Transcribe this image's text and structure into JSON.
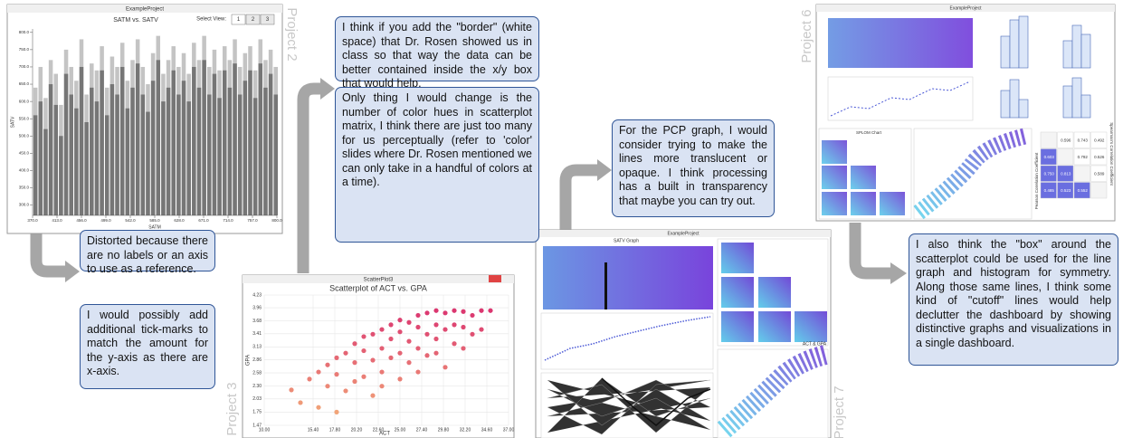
{
  "project_labels": [
    "Project 2",
    "Project 3",
    "Project 6",
    "Project 7"
  ],
  "comments": [
    "Distorted because there are no labels or an axis to use as a reference.",
    "I would possibly add additional tick-marks to match the amount for the y-axis as there are x-axis.",
    "I think if you add the \"border\" (white space) that Dr. Rosen showed us in class so that way the data can be better contained inside the x/y box that would help.",
    "Only thing I would change is the number of color hues in scatterplot matrix, I think there are just too many for us perceptually (refer to 'color' slides where Dr. Rosen mentioned we can only take in a handful of colors at a time).",
    "For the PCP graph, I would consider trying to make the lines more translucent or opaque. I think processing has a built in transparency that maybe you can try out.",
    "I also think the \"box\" around the scatterplot could be used for the line graph and histogram for symmetry. Along those same lines, I think some kind of \"cutoff\" lines would help declutter the dashboard by showing distinctive graphs and visualizations in a single dashboard."
  ],
  "project2": {
    "window_title": "ExampleProject",
    "select_view": "Select View:",
    "buttons": [
      "1",
      "2",
      "3"
    ],
    "chart_data": {
      "type": "bar",
      "title": "SATM vs. SATV",
      "x_label": "SATM",
      "y_label": "SATV",
      "x": [
        375,
        384,
        393,
        402,
        411,
        420,
        429,
        438,
        447,
        456,
        465,
        474,
        483,
        492,
        501,
        510,
        519,
        528,
        537,
        546,
        555,
        564,
        573,
        582,
        591,
        600,
        609,
        618,
        627,
        636,
        645,
        654,
        663,
        672,
        681,
        690,
        699,
        708,
        717,
        726,
        735,
        744,
        753,
        762,
        771,
        780,
        789,
        798
      ],
      "series": [
        {
          "color": "#c4c4c4",
          "values": [
            640,
            700,
            610,
            720,
            680,
            590,
            750,
            700,
            660,
            780,
            620,
            710,
            690,
            760,
            640,
            730,
            700,
            770,
            660,
            720,
            780,
            700,
            650,
            740,
            790,
            680,
            720,
            760,
            700,
            740,
            680,
            770,
            720,
            790,
            700,
            750,
            690,
            760,
            720,
            780,
            700,
            740,
            760,
            690,
            780,
            720,
            750,
            700
          ]
        },
        {
          "color": "#767676",
          "values": [
            560,
            600,
            520,
            650,
            590,
            500,
            680,
            620,
            580,
            700,
            540,
            640,
            600,
            690,
            560,
            650,
            620,
            700,
            580,
            640,
            710,
            620,
            570,
            660,
            720,
            600,
            640,
            690,
            620,
            660,
            600,
            700,
            640,
            720,
            620,
            680,
            610,
            690,
            640,
            710,
            620,
            660,
            690,
            610,
            710,
            640,
            680,
            620
          ]
        }
      ],
      "xlim": [
        370,
        800
      ],
      "xticks": [
        {
          "value": 370,
          "label": "370.0"
        },
        {
          "value": 413,
          "label": "413.0"
        },
        {
          "value": 456,
          "label": "456.0"
        },
        {
          "value": 499,
          "label": "499.0"
        },
        {
          "value": 542,
          "label": "542.0"
        },
        {
          "value": 585,
          "label": "585.0"
        },
        {
          "value": 628,
          "label": "628.0"
        },
        {
          "value": 671,
          "label": "671.0"
        },
        {
          "value": 714,
          "label": "714.0"
        },
        {
          "value": 757,
          "label": "757.0"
        },
        {
          "value": 800,
          "label": "800.0"
        }
      ],
      "ylim": [
        270,
        810
      ],
      "yticks": [
        {
          "value": 300,
          "label": "300.0"
        },
        {
          "value": 350,
          "label": "350.0"
        },
        {
          "value": 400,
          "label": "400.0"
        },
        {
          "value": 450,
          "label": "450.0"
        },
        {
          "value": 500,
          "label": "500.0"
        },
        {
          "value": 550,
          "label": "550.0"
        },
        {
          "value": 600,
          "label": "600.0"
        },
        {
          "value": 650,
          "label": "650.0"
        },
        {
          "value": 700,
          "label": "700.0"
        },
        {
          "value": 750,
          "label": "750.0"
        },
        {
          "value": 800,
          "label": "800.0"
        }
      ]
    }
  },
  "project3": {
    "window_title": "ScatterPlot3",
    "chart_data": {
      "type": "scatter",
      "title": "Scatterplot of ACT vs. GPA",
      "x_label": "ACT",
      "y_label": "GPA",
      "color_low": "#f4b27a",
      "color_high": "#d8266f",
      "grid": true,
      "x": [
        13,
        14,
        15,
        16,
        16,
        17,
        17,
        18,
        18,
        18,
        19,
        19,
        20,
        20,
        20,
        21,
        21,
        21,
        22,
        22,
        22,
        23,
        23,
        23,
        23,
        24,
        24,
        24,
        25,
        25,
        25,
        25,
        26,
        26,
        26,
        27,
        27,
        27,
        27,
        28,
        28,
        28,
        29,
        29,
        29,
        29,
        30,
        30,
        30,
        31,
        31,
        31,
        32,
        32,
        32,
        33,
        33,
        34,
        34,
        35
      ],
      "values": [
        2.22,
        1.95,
        2.45,
        2.6,
        1.85,
        2.3,
        2.75,
        1.75,
        2.55,
        2.9,
        2.2,
        3.0,
        2.4,
        2.8,
        3.2,
        2.5,
        3.05,
        3.35,
        2.1,
        2.85,
        3.4,
        2.6,
        3.1,
        3.5,
        2.3,
        2.9,
        3.3,
        3.6,
        2.45,
        3.0,
        3.45,
        3.7,
        2.8,
        3.25,
        3.65,
        2.6,
        3.1,
        3.55,
        3.8,
        2.95,
        3.4,
        3.85,
        3.0,
        3.3,
        3.6,
        3.9,
        2.7,
        3.5,
        3.85,
        3.2,
        3.6,
        3.9,
        3.1,
        3.55,
        3.88,
        3.4,
        3.8,
        3.5,
        3.9,
        3.9
      ],
      "xlim": [
        10,
        37
      ],
      "xticks": [
        {
          "value": 10,
          "label": "10.00"
        },
        {
          "value": 15.4,
          "label": "15.40"
        },
        {
          "value": 17.8,
          "label": "17.80"
        },
        {
          "value": 20.2,
          "label": "20.20"
        },
        {
          "value": 22.6,
          "label": "22.60"
        },
        {
          "value": 25,
          "label": "25.00"
        },
        {
          "value": 27.4,
          "label": "27.40"
        },
        {
          "value": 29.8,
          "label": "29.80"
        },
        {
          "value": 32.2,
          "label": "32.20"
        },
        {
          "value": 34.6,
          "label": "34.60"
        },
        {
          "value": 37,
          "label": "37.00"
        }
      ],
      "ylim": [
        1.47,
        4.23
      ],
      "yticks": [
        1.47,
        1.75,
        2.03,
        {
          "value": 2.3,
          "label": "2.30"
        },
        2.58,
        2.86,
        3.13,
        3.41,
        3.68,
        3.96,
        4.23
      ]
    }
  },
  "project6": {
    "window_title": "ExampleProject",
    "splom_title": "SPLOM Chart",
    "pearson": "Pearson Correlation Coefficient",
    "spearman": "Spearman's Correlation Coefficient",
    "matrix": [
      [
        null,
        "0.596",
        "0.743",
        "0.492"
      ],
      [
        "0.603",
        null,
        "0.792",
        "0.526"
      ],
      [
        "0.750",
        "0.813",
        null,
        "0.589"
      ],
      [
        "0.485",
        "0.523",
        "0.552",
        null
      ]
    ]
  },
  "project7": {
    "window_title": "ExampleProject",
    "bar_title": "SATV Graph",
    "splom_label": "ACT & GPA"
  }
}
